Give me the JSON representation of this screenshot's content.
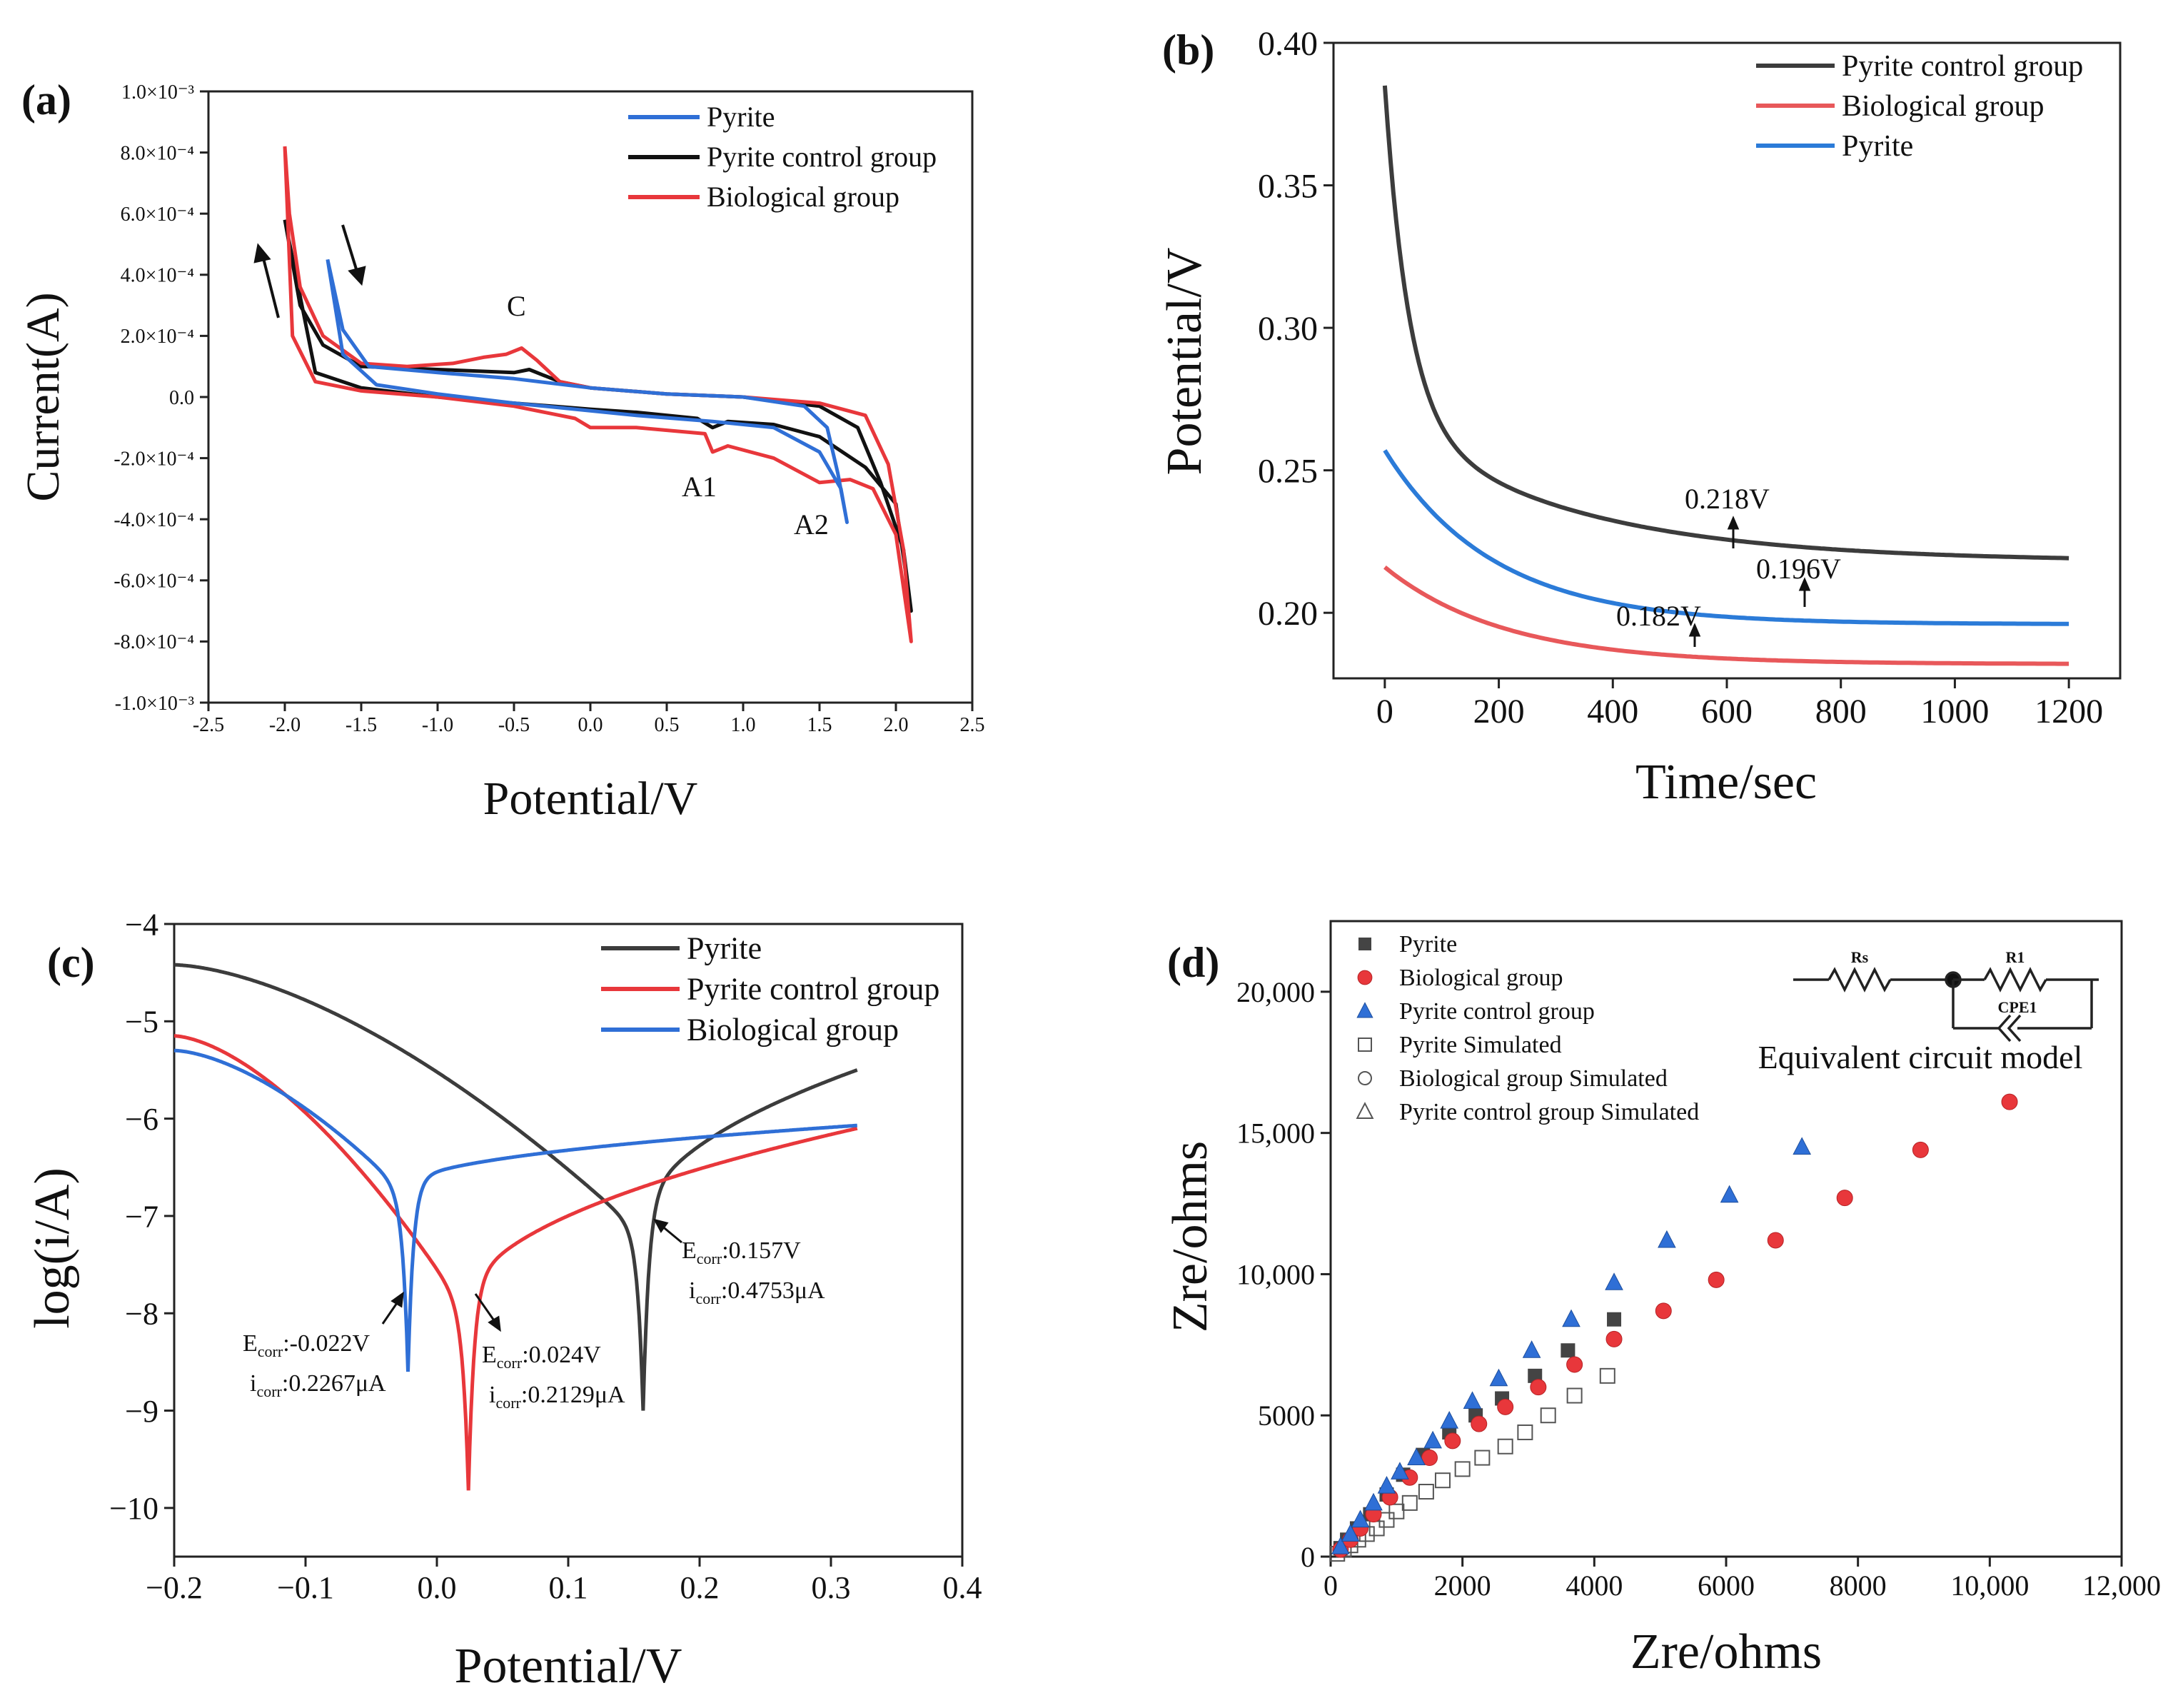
{
  "colors": {
    "black": "#111111",
    "red": "#e8373b",
    "blue": "#2f6fd6",
    "gray": "#3c3c3c",
    "lred": "#e8585a",
    "lblue": "#2b7bd8"
  },
  "chart_data": [
    {
      "panel": "(a)",
      "type": "line",
      "xlabel": "Potential/V",
      "ylabel": "Current(A)",
      "xlim": [
        -2.5,
        2.5
      ],
      "ylim": [
        -0.001,
        0.001
      ],
      "xticks": [
        -2.5,
        -2.0,
        -1.5,
        -1.0,
        -0.5,
        0.0,
        0.5,
        1.0,
        1.5,
        2.0,
        2.5
      ],
      "xtick_labels": [
        "-2.5",
        "-2.0",
        "-1.5",
        "-1.0",
        "-0.5",
        "0.0",
        "0.5",
        "1.0",
        "1.5",
        "2.0",
        "2.5"
      ],
      "yticks": [
        0.001,
        0.0008,
        0.0006,
        0.0004,
        0.0002,
        0,
        -0.0002,
        -0.0004,
        -0.0006,
        -0.0008,
        -0.001
      ],
      "ytick_labels": [
        "1.0×10⁻³",
        "8.0×10⁻⁴",
        "6.0×10⁻⁴",
        "4.0×10⁻⁴",
        "2.0×10⁻⁴",
        "0.0",
        "-2.0×10⁻⁴",
        "-4.0×10⁻⁴",
        "-6.0×10⁻⁴",
        "-8.0×10⁻⁴",
        "-1.0×10⁻³"
      ],
      "legend": [
        "Pyrite",
        "Pyrite control group",
        "Biological group"
      ],
      "legend_position": "top-right",
      "annotations": [
        "C",
        "A1",
        "A2"
      ],
      "series": [
        {
          "name": "Pyrite",
          "color": "#2f6fd6",
          "points": [
            [
              -1.72,
              0.00045
            ],
            [
              -1.62,
              0.00022
            ],
            [
              -1.45,
              0.0001
            ],
            [
              -1.0,
              8e-05
            ],
            [
              -0.5,
              6e-05
            ],
            [
              0.0,
              3e-05
            ],
            [
              0.5,
              1e-05
            ],
            [
              1.0,
              0.0
            ],
            [
              1.4,
              -3e-05
            ],
            [
              1.55,
              -0.0001
            ],
            [
              1.62,
              -0.00025
            ],
            [
              1.68,
              -0.00041
            ],
            [
              1.64,
              -0.0003
            ],
            [
              1.5,
              -0.00018
            ],
            [
              1.2,
              -0.0001
            ],
            [
              0.8,
              -8e-05
            ],
            [
              0.3,
              -6e-05
            ],
            [
              -0.5,
              -2e-05
            ],
            [
              -1.0,
              1e-05
            ],
            [
              -1.4,
              4e-05
            ],
            [
              -1.62,
              0.00014
            ],
            [
              -1.72,
              0.00045
            ]
          ]
        },
        {
          "name": "Pyrite control group",
          "color": "#111111",
          "points": [
            [
              -2.0,
              0.00058
            ],
            [
              -1.9,
              0.0003
            ],
            [
              -1.75,
              0.00017
            ],
            [
              -1.5,
              0.0001
            ],
            [
              -1.0,
              9e-05
            ],
            [
              -0.5,
              8e-05
            ],
            [
              -0.4,
              9e-05
            ],
            [
              -0.2,
              5e-05
            ],
            [
              0.0,
              3e-05
            ],
            [
              0.5,
              1e-05
            ],
            [
              1.0,
              0.0
            ],
            [
              1.5,
              -3e-05
            ],
            [
              1.75,
              -0.0001
            ],
            [
              1.9,
              -0.00028
            ],
            [
              2.05,
              -0.0005
            ],
            [
              2.1,
              -0.0007
            ],
            [
              2.0,
              -0.00035
            ],
            [
              1.8,
              -0.00023
            ],
            [
              1.5,
              -0.00013
            ],
            [
              1.2,
              -9e-05
            ],
            [
              0.9,
              -8e-05
            ],
            [
              0.8,
              -0.0001
            ],
            [
              0.7,
              -7e-05
            ],
            [
              0.3,
              -5e-05
            ],
            [
              0.0,
              -4e-05
            ],
            [
              -0.5,
              -2e-05
            ],
            [
              -1.0,
              0.0
            ],
            [
              -1.5,
              3e-05
            ],
            [
              -1.8,
              8e-05
            ],
            [
              -2.0,
              0.00058
            ]
          ]
        },
        {
          "name": "Biological group",
          "color": "#e8373b",
          "points": [
            [
              -2.0,
              0.00082
            ],
            [
              -1.97,
              0.0006
            ],
            [
              -1.9,
              0.00036
            ],
            [
              -1.75,
              0.0002
            ],
            [
              -1.5,
              0.00011
            ],
            [
              -1.2,
              0.0001
            ],
            [
              -0.9,
              0.00011
            ],
            [
              -0.7,
              0.00013
            ],
            [
              -0.55,
              0.00014
            ],
            [
              -0.45,
              0.00016
            ],
            [
              -0.35,
              0.00012
            ],
            [
              -0.2,
              5e-05
            ],
            [
              0.0,
              3e-05
            ],
            [
              0.5,
              1e-05
            ],
            [
              1.0,
              0.0
            ],
            [
              1.5,
              -2e-05
            ],
            [
              1.8,
              -6e-05
            ],
            [
              1.95,
              -0.00022
            ],
            [
              2.05,
              -0.0005
            ],
            [
              2.1,
              -0.0008
            ],
            [
              2.0,
              -0.00045
            ],
            [
              1.85,
              -0.0003
            ],
            [
              1.7,
              -0.00027
            ],
            [
              1.5,
              -0.00028
            ],
            [
              1.2,
              -0.0002
            ],
            [
              0.9,
              -0.00016
            ],
            [
              0.8,
              -0.00018
            ],
            [
              0.75,
              -0.00012
            ],
            [
              0.3,
              -0.0001
            ],
            [
              0.0,
              -0.0001
            ],
            [
              -0.1,
              -7e-05
            ],
            [
              -0.5,
              -3e-05
            ],
            [
              -1.0,
              0.0
            ],
            [
              -1.5,
              2e-05
            ],
            [
              -1.8,
              5e-05
            ],
            [
              -1.95,
              0.0002
            ],
            [
              -2.0,
              0.00082
            ]
          ]
        }
      ]
    },
    {
      "panel": "(b)",
      "type": "line",
      "xlabel": "Time/sec",
      "ylabel": "Potential/V",
      "xlim": [
        -90,
        1290
      ],
      "ylim": [
        0.177,
        0.4
      ],
      "xticks": [
        0,
        200,
        400,
        600,
        800,
        1000,
        1200
      ],
      "yticks": [
        0.2,
        0.25,
        0.3,
        0.35,
        0.4
      ],
      "ytick_labels": [
        "0.20",
        "0.25",
        "0.30",
        "0.35",
        "0.40"
      ],
      "legend": [
        "Pyrite control group",
        "Biological group",
        "Pyrite"
      ],
      "legend_position": "top-right",
      "annotations": [
        "0.218V",
        "0.196V",
        "0.182V"
      ],
      "series": [
        {
          "name": "Pyrite control group",
          "color": "#3c3c3c",
          "start": 0.385,
          "end": 0.218,
          "tau": 42
        },
        {
          "name": "Biological group",
          "color": "#e8585a",
          "start": 0.216,
          "end": 0.182,
          "tau": 210
        },
        {
          "name": "Pyrite",
          "color": "#2b7bd8",
          "start": 0.257,
          "end": 0.196,
          "tau": 190
        }
      ]
    },
    {
      "panel": "(c)",
      "type": "line",
      "xlabel": "Potential/V",
      "ylabel": "log(i/A)",
      "xlim": [
        -0.2,
        0.4
      ],
      "ylim": [
        -10.5,
        -4
      ],
      "xticks": [
        -0.2,
        -0.1,
        0.0,
        0.1,
        0.2,
        0.3,
        0.4
      ],
      "xtick_labels": [
        "−0.2",
        "−0.1",
        "0.0",
        "0.1",
        "0.2",
        "0.3",
        "0.4"
      ],
      "yticks": [
        -4,
        -5,
        -6,
        -7,
        -8,
        -9,
        -10
      ],
      "ytick_labels": [
        "−4",
        "−5",
        "−6",
        "−7",
        "−8",
        "−9",
        "−10"
      ],
      "legend": [
        "Pyrite",
        "Pyrite control group",
        "Biological group"
      ],
      "legend_position": "top-right",
      "annotations": [
        {
          "e_label": "E",
          "e_sub": "corr",
          "e_val": ":0.157V",
          "i_label": "i",
          "i_sub": "corr",
          "i_val": ":0.4753μA"
        },
        {
          "e_label": "E",
          "e_sub": "corr",
          "e_val": ":-0.022V",
          "i_label": "i",
          "i_sub": "corr",
          "i_val": ":0.2267μA"
        },
        {
          "e_label": "E",
          "e_sub": "corr",
          "e_val": ":0.024V",
          "i_label": "i",
          "i_sub": "corr",
          "i_val": ":0.2129μA"
        }
      ],
      "series": [
        {
          "name": "Pyrite",
          "color": "#3c3c3c",
          "ecorr": 0.157,
          "min": -9.0,
          "left_start": -4.42,
          "right_end": -5.5
        },
        {
          "name": "Pyrite control group",
          "color": "#e8373b",
          "ecorr": 0.024,
          "min": -9.82,
          "left_start": -5.15,
          "right_end": -6.1
        },
        {
          "name": "Biological group",
          "color": "#2f6fd6",
          "ecorr": -0.022,
          "min": -8.6,
          "left_start": -5.3,
          "right_end": -6.07
        }
      ]
    },
    {
      "panel": "(d)",
      "type": "scatter",
      "xlabel": "Zre/ohms",
      "ylabel": "Zre/ohms",
      "xlim": [
        0,
        12000
      ],
      "ylim": [
        0,
        22500
      ],
      "xticks": [
        0,
        2000,
        4000,
        6000,
        8000,
        10000,
        12000
      ],
      "xtick_labels": [
        "0",
        "2000",
        "4000",
        "6000",
        "8000",
        "10,000",
        "12,000"
      ],
      "yticks": [
        0,
        5000,
        10000,
        15000,
        20000
      ],
      "ytick_labels": [
        "0",
        "5000",
        "10,000",
        "15,000",
        "20,000"
      ],
      "legend": [
        "Pyrite",
        "Biological group",
        "Pyrite control group",
        "Pyrite Simulated",
        "Biological group Simulated",
        "Pyrite control group Simulated"
      ],
      "legend_position": "top-left",
      "inset": {
        "caption": "Equivalent circuit model",
        "labels": [
          "Rs",
          "R1",
          "CPE1"
        ]
      },
      "series": [
        {
          "name": "Pyrite",
          "marker": "square",
          "color": "#444444",
          "points": [
            [
              150,
              300
            ],
            [
              250,
              600
            ],
            [
              400,
              1000
            ],
            [
              600,
              1500
            ],
            [
              850,
              2200
            ],
            [
              1100,
              2900
            ],
            [
              1400,
              3600
            ],
            [
              1800,
              4400
            ],
            [
              2200,
              5000
            ],
            [
              2600,
              5600
            ],
            [
              3100,
              6400
            ],
            [
              3600,
              7300
            ],
            [
              4300,
              8400
            ]
          ]
        },
        {
          "name": "Biological group",
          "marker": "circle",
          "color": "#e8373b",
          "points": [
            [
              150,
              250
            ],
            [
              300,
              600
            ],
            [
              450,
              1000
            ],
            [
              650,
              1500
            ],
            [
              900,
              2100
            ],
            [
              1200,
              2800
            ],
            [
              1500,
              3500
            ],
            [
              1850,
              4100
            ],
            [
              2250,
              4700
            ],
            [
              2650,
              5300
            ],
            [
              3150,
              6000
            ],
            [
              3700,
              6800
            ],
            [
              4300,
              7700
            ],
            [
              5050,
              8700
            ],
            [
              5850,
              9800
            ],
            [
              6750,
              11200
            ],
            [
              7800,
              12700
            ],
            [
              8950,
              14400
            ],
            [
              10300,
              16100
            ]
          ]
        },
        {
          "name": "Pyrite control group",
          "marker": "triangle",
          "color": "#2f6fd6",
          "points": [
            [
              150,
              350
            ],
            [
              300,
              800
            ],
            [
              450,
              1300
            ],
            [
              650,
              1900
            ],
            [
              850,
              2500
            ],
            [
              1050,
              3000
            ],
            [
              1300,
              3500
            ],
            [
              1550,
              4100
            ],
            [
              1800,
              4800
            ],
            [
              2150,
              5500
            ],
            [
              2550,
              6300
            ],
            [
              3050,
              7300
            ],
            [
              3650,
              8400
            ],
            [
              4300,
              9700
            ],
            [
              5100,
              11200
            ],
            [
              6050,
              12800
            ],
            [
              7150,
              14500
            ]
          ]
        },
        {
          "name": "Pyrite Simulated",
          "marker": "open-square",
          "color": "#555555",
          "points": [
            [
              100,
              100
            ],
            [
              200,
              250
            ],
            [
              300,
              400
            ],
            [
              420,
              600
            ],
            [
              550,
              800
            ],
            [
              700,
              1000
            ],
            [
              850,
              1300
            ],
            [
              1000,
              1600
            ],
            [
              1200,
              1900
            ],
            [
              1450,
              2300
            ],
            [
              1700,
              2700
            ],
            [
              2000,
              3100
            ],
            [
              2300,
              3500
            ],
            [
              2650,
              3900
            ],
            [
              2950,
              4400
            ],
            [
              3300,
              5000
            ],
            [
              3700,
              5700
            ],
            [
              4200,
              6400
            ]
          ]
        },
        {
          "name": "Biological group Simulated",
          "marker": "open-circle",
          "color": "#555555",
          "points": []
        },
        {
          "name": "Pyrite control group Simulated",
          "marker": "open-triangle",
          "color": "#555555",
          "points": []
        }
      ]
    }
  ]
}
